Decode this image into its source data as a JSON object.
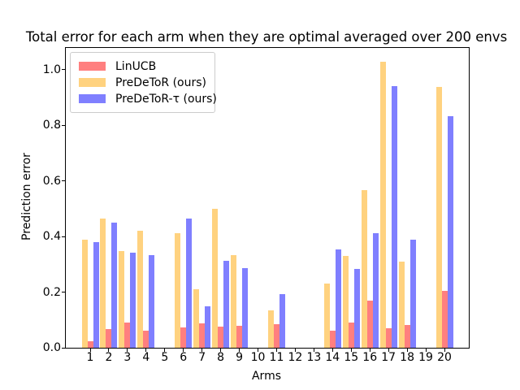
{
  "chart_data": {
    "type": "bar",
    "title": "Total error for each arm when they are optimal averaged over 200 envs",
    "xlabel": "Arms",
    "ylabel": "Prediction error",
    "categories": [
      "1",
      "2",
      "3",
      "4",
      "5",
      "6",
      "7",
      "8",
      "9",
      "10",
      "11",
      "12",
      "13",
      "14",
      "15",
      "16",
      "17",
      "18",
      "19",
      "20"
    ],
    "series": [
      {
        "name": "LinUCB",
        "color": "#ff7f7f",
        "group_position": 0,
        "values": [
          0.024,
          0.068,
          0.09,
          0.062,
          0,
          0.074,
          0.089,
          0.077,
          0.08,
          0,
          0.086,
          0,
          0,
          0.06,
          0.091,
          0.17,
          0.069,
          0.081,
          0,
          0.205
        ]
      },
      {
        "name": "PreDeToR (ours)",
        "color": "#ffd27f",
        "group_position": -1,
        "values": [
          0.389,
          0.464,
          0.348,
          0.421,
          0,
          0.411,
          0.21,
          0.499,
          0.332,
          0,
          0.133,
          0,
          0,
          0.232,
          0.33,
          0.567,
          1.027,
          0.309,
          0,
          0.939
        ]
      },
      {
        "name": "PreDeToR-τ (ours)",
        "color": "#7f7fff",
        "group_position": 1,
        "values": [
          0.381,
          0.45,
          0.343,
          0.334,
          0,
          0.466,
          0.148,
          0.313,
          0.286,
          0,
          0.194,
          0,
          0,
          0.353,
          0.282,
          0.411,
          0.94,
          0.39,
          0,
          0.834
        ]
      }
    ],
    "ylim": [
      0,
      1.078
    ],
    "yticks": [
      "0.0",
      "0.2",
      "0.4",
      "0.6",
      "0.8",
      "1.0"
    ],
    "ytick_values": [
      0.0,
      0.2,
      0.4,
      0.6,
      0.8,
      1.0
    ],
    "legend_position": "upper left",
    "grid": false,
    "axis_color": "#000000",
    "background_color": "#ffffff"
  }
}
